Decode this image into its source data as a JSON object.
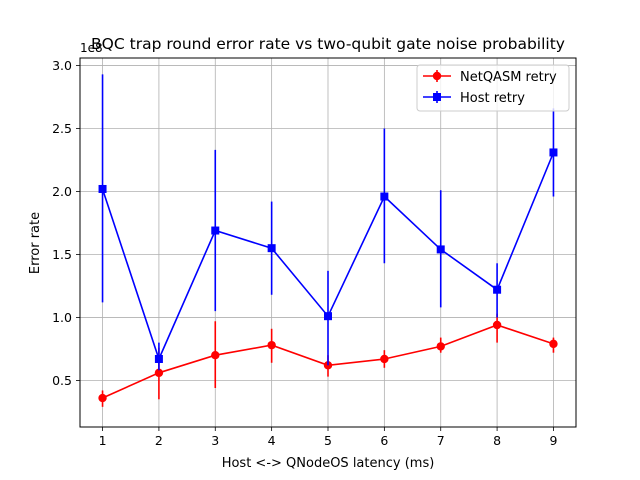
{
  "chart_data": {
    "type": "line",
    "title": "BQC trap round error rate vs two-qubit gate noise probability",
    "xlabel": "Host <-> QNodeOS latency (ms)",
    "ylabel": "Error rate",
    "y_scale_label": "1e8",
    "x": [
      1,
      2,
      3,
      4,
      5,
      6,
      7,
      8,
      9
    ],
    "xlim": [
      0.6,
      9.4
    ],
    "ylim": [
      0.13,
      3.06
    ],
    "x_ticks": [
      1,
      2,
      3,
      4,
      5,
      6,
      7,
      8,
      9
    ],
    "y_ticks": [
      0.5,
      1.0,
      1.5,
      2.0,
      2.5,
      3.0
    ],
    "y_tick_labels": [
      "0.5",
      "1.0",
      "1.5",
      "2.0",
      "2.5",
      "3.0"
    ],
    "grid": true,
    "legend_position": "top-right",
    "series": [
      {
        "name": "NetQASM retry",
        "color": "#ff0000",
        "marker": "circle",
        "values": [
          0.36,
          0.56,
          0.7,
          0.78,
          0.62,
          0.67,
          0.77,
          0.94,
          0.79
        ],
        "err_low": [
          0.29,
          0.35,
          0.44,
          0.64,
          0.53,
          0.6,
          0.72,
          0.8,
          0.72
        ],
        "err_high": [
          0.42,
          0.76,
          0.97,
          0.91,
          0.7,
          0.74,
          0.84,
          1.03,
          0.84
        ]
      },
      {
        "name": "Host retry",
        "color": "#0000ff",
        "marker": "square",
        "values": [
          2.02,
          0.67,
          1.69,
          1.55,
          1.01,
          1.96,
          1.54,
          1.22,
          2.31
        ],
        "err_low": [
          1.12,
          0.58,
          1.05,
          1.18,
          0.62,
          1.43,
          1.08,
          1.0,
          1.96
        ],
        "err_high": [
          2.93,
          0.8,
          2.33,
          1.92,
          1.37,
          2.5,
          2.01,
          1.43,
          2.66
        ]
      }
    ]
  }
}
